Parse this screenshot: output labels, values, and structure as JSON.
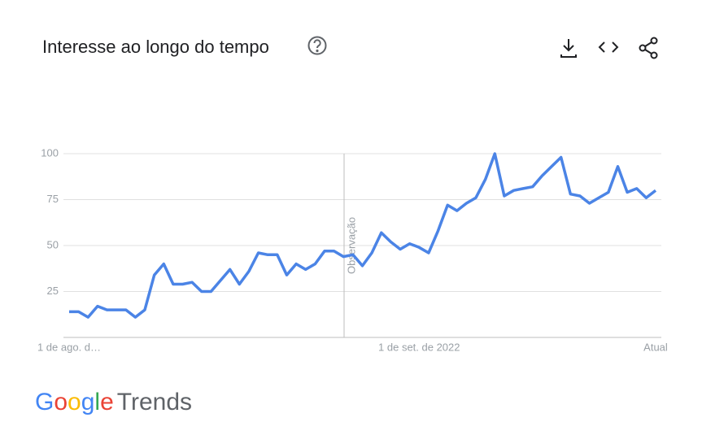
{
  "chart_data": {
    "type": "line",
    "title": "Interesse ao longo do tempo",
    "annotation": "Observação",
    "categories": [
      "1 de ago. d…",
      null,
      null,
      null,
      null,
      null,
      null,
      null,
      null,
      null,
      null,
      null,
      null,
      null,
      null,
      null,
      null,
      null,
      null,
      null,
      null,
      null,
      null,
      null,
      null,
      null,
      null,
      null,
      null,
      null,
      null,
      null,
      null,
      null,
      null,
      null,
      null,
      "1 de set. de 2022",
      null,
      null,
      null,
      null,
      null,
      null,
      null,
      null,
      null,
      null,
      null,
      null,
      null,
      null,
      null,
      null,
      null,
      null,
      null,
      null,
      null,
      null,
      null,
      null,
      "Atual"
    ],
    "series": [
      {
        "name": "Interesse",
        "color": "#4b84e6",
        "values": [
          14,
          14,
          11,
          17,
          15,
          15,
          15,
          11,
          15,
          34,
          40,
          29,
          29,
          30,
          25,
          25,
          31,
          37,
          29,
          36,
          46,
          45,
          45,
          34,
          40,
          37,
          40,
          47,
          47,
          44,
          45,
          39,
          46,
          57,
          52,
          48,
          51,
          49,
          46,
          58,
          72,
          69,
          73,
          76,
          86,
          100,
          77,
          80,
          81,
          82,
          88,
          93,
          98,
          78,
          77,
          73,
          76,
          79,
          93,
          79,
          81,
          76,
          80
        ]
      }
    ],
    "ylim": [
      0,
      100
    ],
    "yticks": [
      25,
      50,
      75,
      100
    ],
    "grid": true
  },
  "logo": {
    "google": [
      "G",
      "o",
      "o",
      "g",
      "l",
      "e"
    ],
    "product": "Trends"
  }
}
